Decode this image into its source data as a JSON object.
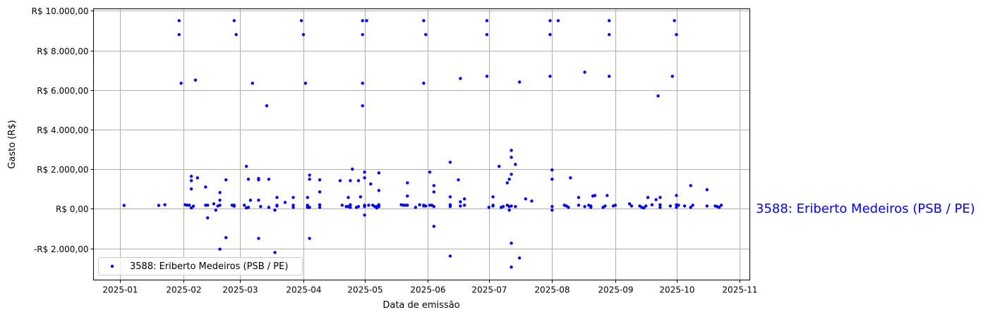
{
  "chart_data": {
    "type": "scatter",
    "title": "",
    "xlabel": "Data de emissão",
    "ylabel": "Gasto (R$)",
    "xlim": [
      "2024-12-19",
      "2025-11-06"
    ],
    "ylim": [
      -3600,
      10100
    ],
    "grid": true,
    "legend_placement": "lower-left",
    "x_ticks": [
      {
        "date": "2025-01-01",
        "label": "2025-01"
      },
      {
        "date": "2025-02-01",
        "label": "2025-02"
      },
      {
        "date": "2025-03-01",
        "label": "2025-03"
      },
      {
        "date": "2025-04-01",
        "label": "2025-04"
      },
      {
        "date": "2025-05-01",
        "label": "2025-05"
      },
      {
        "date": "2025-06-01",
        "label": "2025-06"
      },
      {
        "date": "2025-07-01",
        "label": "2025-07"
      },
      {
        "date": "2025-08-01",
        "label": "2025-08"
      },
      {
        "date": "2025-09-01",
        "label": "2025-09"
      },
      {
        "date": "2025-10-01",
        "label": "2025-10"
      },
      {
        "date": "2025-11-01",
        "label": "2025-11"
      }
    ],
    "y_ticks": [
      {
        "value": -2000,
        "label": "-R$ 2.000,00"
      },
      {
        "value": 0,
        "label": "R$ 0,00"
      },
      {
        "value": 2000,
        "label": "R$ 2.000,00"
      },
      {
        "value": 4000,
        "label": "R$ 4.000,00"
      },
      {
        "value": 6000,
        "label": "R$ 6.000,00"
      },
      {
        "value": 8000,
        "label": "R$ 8.000,00"
      },
      {
        "value": 10000,
        "label": "R$ 10.000,00"
      }
    ],
    "series": [
      {
        "name": "3588: Eriberto Medeiros (PSB / PE)",
        "color": "#0000ff",
        "points": [
          [
            "2025-01-03",
            170
          ],
          [
            "2025-01-20",
            170
          ],
          [
            "2025-01-23",
            200
          ],
          [
            "2025-01-30",
            9500
          ],
          [
            "2025-01-30",
            8800
          ],
          [
            "2025-01-31",
            6340
          ],
          [
            "2025-02-02",
            200
          ],
          [
            "2025-02-03",
            180
          ],
          [
            "2025-02-04",
            180
          ],
          [
            "2025-02-05",
            1640
          ],
          [
            "2025-02-05",
            1420
          ],
          [
            "2025-02-05",
            1000
          ],
          [
            "2025-02-05",
            40
          ],
          [
            "2025-02-06",
            130
          ],
          [
            "2025-02-07",
            6500
          ],
          [
            "2025-02-08",
            1560
          ],
          [
            "2025-02-12",
            180
          ],
          [
            "2025-02-12",
            1100
          ],
          [
            "2025-02-13",
            -460
          ],
          [
            "2025-02-13",
            180
          ],
          [
            "2025-02-16",
            250
          ],
          [
            "2025-02-17",
            -70
          ],
          [
            "2025-02-18",
            140
          ],
          [
            "2025-02-19",
            430
          ],
          [
            "2025-02-19",
            820
          ],
          [
            "2025-02-19",
            180
          ],
          [
            "2025-02-19",
            -2040
          ],
          [
            "2025-02-22",
            1460
          ],
          [
            "2025-02-22",
            -1460
          ],
          [
            "2025-02-25",
            180
          ],
          [
            "2025-02-26",
            130
          ],
          [
            "2025-02-26",
            180
          ],
          [
            "2025-02-26",
            9500
          ],
          [
            "2025-02-27",
            8800
          ],
          [
            "2025-03-03",
            180
          ],
          [
            "2025-03-04",
            2140
          ],
          [
            "2025-03-04",
            40
          ],
          [
            "2025-03-05",
            70
          ],
          [
            "2025-03-05",
            1490
          ],
          [
            "2025-03-06",
            430
          ],
          [
            "2025-03-07",
            6340
          ],
          [
            "2025-03-10",
            1530
          ],
          [
            "2025-03-10",
            1460
          ],
          [
            "2025-03-10",
            -1500
          ],
          [
            "2025-03-10",
            430
          ],
          [
            "2025-03-11",
            110
          ],
          [
            "2025-03-14",
            5200
          ],
          [
            "2025-03-15",
            1490
          ],
          [
            "2025-03-15",
            70
          ],
          [
            "2025-03-18",
            -70
          ],
          [
            "2025-03-18",
            -2210
          ],
          [
            "2025-03-19",
            570
          ],
          [
            "2025-03-19",
            180
          ],
          [
            "2025-03-19",
            140
          ],
          [
            "2025-03-23",
            320
          ],
          [
            "2025-03-27",
            570
          ],
          [
            "2025-03-27",
            70
          ],
          [
            "2025-03-27",
            180
          ],
          [
            "2025-03-31",
            9500
          ],
          [
            "2025-04-01",
            8800
          ],
          [
            "2025-04-02",
            6340
          ],
          [
            "2025-04-03",
            570
          ],
          [
            "2025-04-03",
            180
          ],
          [
            "2025-04-03",
            140
          ],
          [
            "2025-04-03",
            70
          ],
          [
            "2025-04-04",
            1700
          ],
          [
            "2025-04-04",
            1490
          ],
          [
            "2025-04-04",
            70
          ],
          [
            "2025-04-04",
            -1500
          ],
          [
            "2025-04-09",
            1460
          ],
          [
            "2025-04-09",
            850
          ],
          [
            "2025-04-09",
            200
          ],
          [
            "2025-04-09",
            70
          ],
          [
            "2025-04-19",
            1420
          ],
          [
            "2025-04-20",
            180
          ],
          [
            "2025-04-23",
            570
          ],
          [
            "2025-04-22",
            110
          ],
          [
            "2025-04-23",
            110
          ],
          [
            "2025-04-24",
            70
          ],
          [
            "2025-04-24",
            1420
          ],
          [
            "2025-04-24",
            200
          ],
          [
            "2025-04-25",
            2000
          ],
          [
            "2025-04-28",
            1420
          ],
          [
            "2025-04-27",
            70
          ],
          [
            "2025-04-28",
            110
          ],
          [
            "2025-04-29",
            600
          ],
          [
            "2025-04-30",
            9500
          ],
          [
            "2025-04-30",
            8800
          ],
          [
            "2025-04-30",
            6340
          ],
          [
            "2025-04-30",
            5200
          ],
          [
            "2025-05-02",
            9500
          ],
          [
            "2025-05-01",
            1850
          ],
          [
            "2025-05-01",
            1560
          ],
          [
            "2025-05-01",
            180
          ],
          [
            "2025-05-01",
            110
          ],
          [
            "2025-05-01",
            -320
          ],
          [
            "2025-05-03",
            180
          ],
          [
            "2025-05-04",
            1250
          ],
          [
            "2025-05-05",
            180
          ],
          [
            "2025-05-06",
            110
          ],
          [
            "2025-05-07",
            40
          ],
          [
            "2025-05-07",
            110
          ],
          [
            "2025-05-08",
            1810
          ],
          [
            "2025-05-08",
            920
          ],
          [
            "2025-05-08",
            200
          ],
          [
            "2025-05-08",
            110
          ],
          [
            "2025-05-19",
            200
          ],
          [
            "2025-05-20",
            180
          ],
          [
            "2025-05-21",
            180
          ],
          [
            "2025-05-22",
            180
          ],
          [
            "2025-05-22",
            1310
          ],
          [
            "2025-05-22",
            640
          ],
          [
            "2025-05-26",
            70
          ],
          [
            "2025-05-28",
            200
          ],
          [
            "2025-05-30",
            180
          ],
          [
            "2025-05-30",
            140
          ],
          [
            "2025-05-30",
            9500
          ],
          [
            "2025-05-31",
            8800
          ],
          [
            "2025-05-30",
            6340
          ],
          [
            "2025-05-31",
            140
          ],
          [
            "2025-06-02",
            1850
          ],
          [
            "2025-06-02",
            180
          ],
          [
            "2025-06-03",
            180
          ],
          [
            "2025-06-04",
            1170
          ],
          [
            "2025-06-04",
            850
          ],
          [
            "2025-06-04",
            110
          ],
          [
            "2025-06-04",
            -890
          ],
          [
            "2025-06-12",
            600
          ],
          [
            "2025-06-12",
            200
          ],
          [
            "2025-06-12",
            110
          ],
          [
            "2025-06-12",
            2350
          ],
          [
            "2025-06-12",
            -2390
          ],
          [
            "2025-06-16",
            1460
          ],
          [
            "2025-06-17",
            350
          ],
          [
            "2025-06-17",
            140
          ],
          [
            "2025-06-17",
            6580
          ],
          [
            "2025-06-19",
            500
          ],
          [
            "2025-06-19",
            180
          ],
          [
            "2025-06-30",
            9500
          ],
          [
            "2025-06-30",
            8800
          ],
          [
            "2025-06-30",
            6690
          ],
          [
            "2025-07-01",
            70
          ],
          [
            "2025-07-03",
            600
          ],
          [
            "2025-07-03",
            180
          ],
          [
            "2025-07-03",
            140
          ],
          [
            "2025-07-06",
            2140
          ],
          [
            "2025-07-07",
            70
          ],
          [
            "2025-07-08",
            110
          ],
          [
            "2025-07-10",
            1310
          ],
          [
            "2025-07-10",
            180
          ],
          [
            "2025-07-11",
            1490
          ],
          [
            "2025-07-11",
            -70
          ],
          [
            "2025-07-11",
            110
          ],
          [
            "2025-07-12",
            2950
          ],
          [
            "2025-07-12",
            2600
          ],
          [
            "2025-07-12",
            1740
          ],
          [
            "2025-07-12",
            140
          ],
          [
            "2025-07-12",
            -1740
          ],
          [
            "2025-07-12",
            -2950
          ],
          [
            "2025-07-14",
            2240
          ],
          [
            "2025-07-14",
            110
          ],
          [
            "2025-07-16",
            6400
          ],
          [
            "2025-07-16",
            -2490
          ],
          [
            "2025-07-19",
            500
          ],
          [
            "2025-07-22",
            390
          ],
          [
            "2025-07-31",
            9500
          ],
          [
            "2025-07-31",
            8800
          ],
          [
            "2025-07-31",
            6690
          ],
          [
            "2025-08-04",
            9500
          ],
          [
            "2025-08-01",
            1960
          ],
          [
            "2025-08-01",
            1490
          ],
          [
            "2025-08-01",
            110
          ],
          [
            "2025-08-01",
            -70
          ],
          [
            "2025-08-07",
            180
          ],
          [
            "2025-08-08",
            140
          ],
          [
            "2025-08-09",
            70
          ],
          [
            "2025-08-10",
            1560
          ],
          [
            "2025-08-14",
            570
          ],
          [
            "2025-08-14",
            180
          ],
          [
            "2025-08-17",
            6900
          ],
          [
            "2025-08-17",
            110
          ],
          [
            "2025-08-19",
            180
          ],
          [
            "2025-08-20",
            70
          ],
          [
            "2025-08-20",
            140
          ],
          [
            "2025-08-22",
            670
          ],
          [
            "2025-08-21",
            640
          ],
          [
            "2025-08-26",
            70
          ],
          [
            "2025-08-27",
            140
          ],
          [
            "2025-08-28",
            670
          ],
          [
            "2025-08-29",
            9500
          ],
          [
            "2025-08-29",
            8800
          ],
          [
            "2025-08-29",
            6690
          ],
          [
            "2025-08-31",
            140
          ],
          [
            "2025-09-01",
            180
          ],
          [
            "2025-09-08",
            250
          ],
          [
            "2025-09-09",
            140
          ],
          [
            "2025-09-13",
            140
          ],
          [
            "2025-09-14",
            70
          ],
          [
            "2025-09-15",
            40
          ],
          [
            "2025-09-16",
            140
          ],
          [
            "2025-09-17",
            570
          ],
          [
            "2025-09-19",
            200
          ],
          [
            "2025-09-21",
            460
          ],
          [
            "2025-09-22",
            5700
          ],
          [
            "2025-09-23",
            570
          ],
          [
            "2025-09-23",
            200
          ],
          [
            "2025-09-23",
            70
          ],
          [
            "2025-09-28",
            140
          ],
          [
            "2025-09-29",
            6690
          ],
          [
            "2025-09-30",
            9500
          ],
          [
            "2025-10-01",
            8800
          ],
          [
            "2025-10-01",
            670
          ],
          [
            "2025-10-01",
            200
          ],
          [
            "2025-10-02",
            180
          ],
          [
            "2025-10-01",
            70
          ],
          [
            "2025-10-05",
            140
          ],
          [
            "2025-10-08",
            70
          ],
          [
            "2025-10-08",
            1170
          ],
          [
            "2025-10-09",
            180
          ],
          [
            "2025-10-16",
            960
          ],
          [
            "2025-10-16",
            140
          ],
          [
            "2025-10-20",
            140
          ],
          [
            "2025-10-21",
            110
          ],
          [
            "2025-10-22",
            70
          ],
          [
            "2025-10-23",
            180
          ]
        ]
      }
    ],
    "legend": {
      "label": "3588: Eriberto Medeiros (PSB / PE)"
    },
    "annotation": {
      "text": "3588: Eriberto Medeiros (PSB / PE)",
      "color": "#0000ff"
    }
  }
}
